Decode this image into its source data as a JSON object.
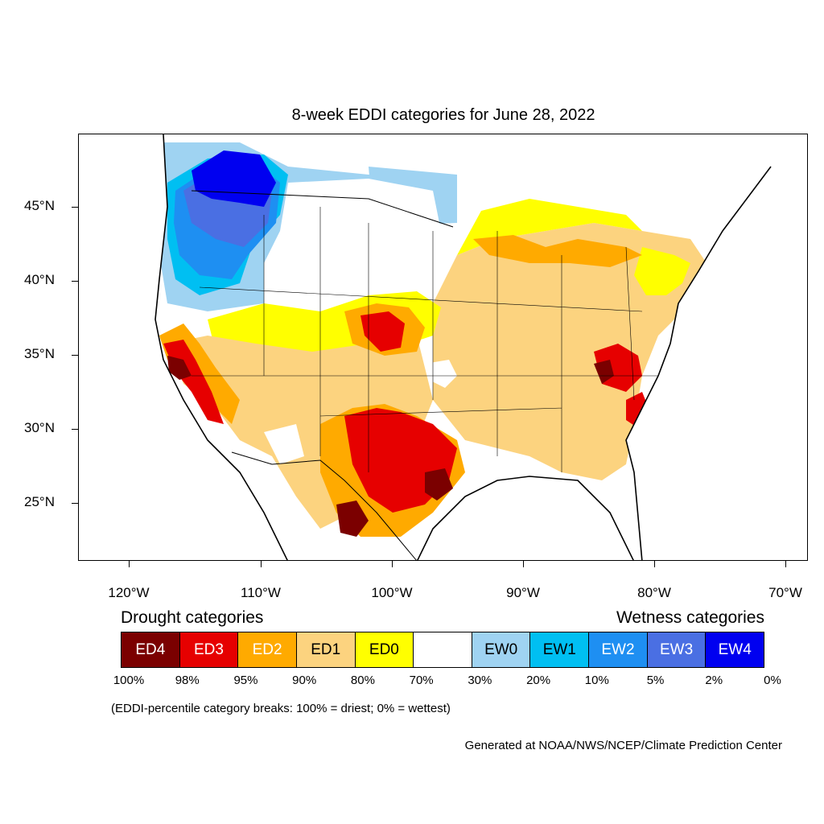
{
  "title": "8-week EDDI categories for June 28, 2022",
  "map": {
    "type": "choropleth-map",
    "region": "CONUS",
    "lat_labels": [
      "45°N",
      "40°N",
      "35°N",
      "30°N",
      "25°N"
    ],
    "lon_labels": [
      "120°W",
      "110°W",
      "100°W",
      "90°W",
      "80°W",
      "70°W"
    ],
    "lat_range": [
      21,
      49.5
    ],
    "lon_range": [
      -124,
      -68.5
    ]
  },
  "legend": {
    "drought_heading": "Drought categories",
    "wetness_heading": "Wetness categories",
    "categories": [
      {
        "label": "ED4",
        "color": "#7b0000",
        "text_color": "#ffffff"
      },
      {
        "label": "ED3",
        "color": "#e60000",
        "text_color": "#ffffff"
      },
      {
        "label": "ED2",
        "color": "#ffaa00",
        "text_color": "#ffffff"
      },
      {
        "label": "ED1",
        "color": "#fcd37f",
        "text_color": "#000000"
      },
      {
        "label": "ED0",
        "color": "#ffff00",
        "text_color": "#000000"
      },
      {
        "label": "",
        "color": "#ffffff",
        "text_color": "#000000"
      },
      {
        "label": "EW0",
        "color": "#9fd3f2",
        "text_color": "#000000"
      },
      {
        "label": "EW1",
        "color": "#00bff2",
        "text_color": "#000000"
      },
      {
        "label": "EW2",
        "color": "#1e8ff2",
        "text_color": "#ffffff"
      },
      {
        "label": "EW3",
        "color": "#4a6fe3",
        "text_color": "#ffffff"
      },
      {
        "label": "EW4",
        "color": "#0000f0",
        "text_color": "#ffffff"
      }
    ],
    "breaks": [
      "100%",
      "98%",
      "95%",
      "90%",
      "80%",
      "70%",
      "30%",
      "20%",
      "10%",
      "5%",
      "2%",
      "0%"
    ]
  },
  "note": "(EDDI-percentile category breaks: 100% = driest; 0% = wettest)",
  "credit": "Generated at NOAA/NWS/NCEP/Climate Prediction Center"
}
